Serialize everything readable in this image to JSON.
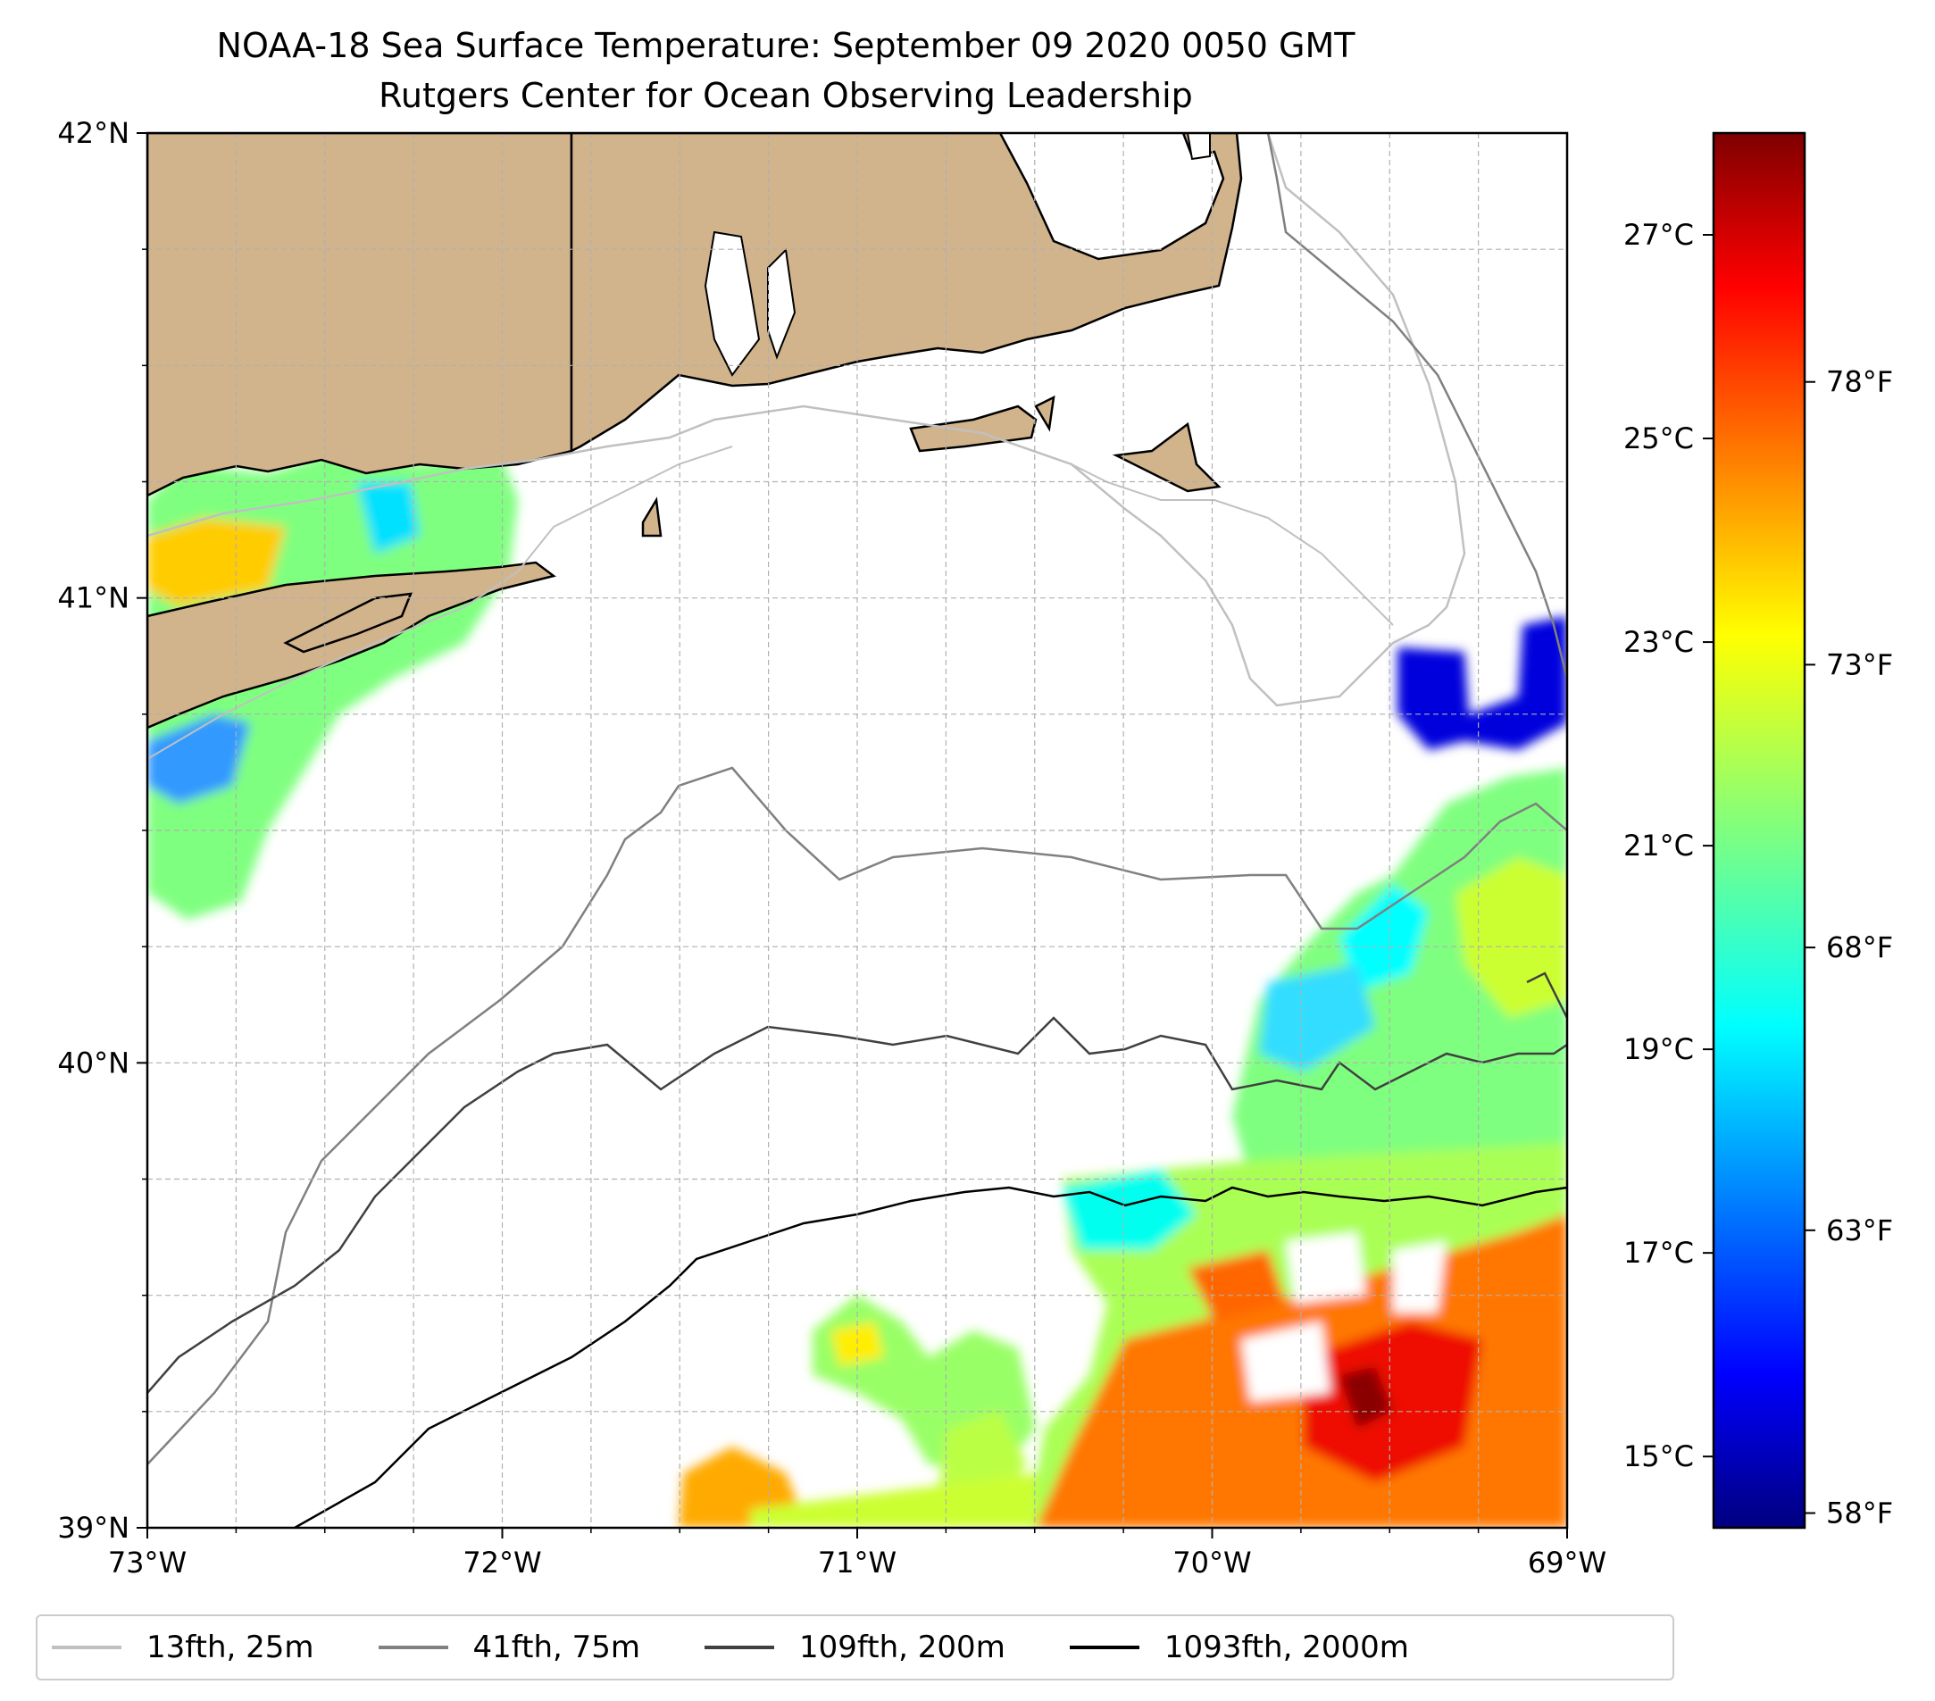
{
  "title": {
    "line1": "NOAA-18 Sea Surface Temperature: September 09 2020 0050 GMT",
    "line2": "Rutgers Center for Ocean Observing Leadership"
  },
  "axes": {
    "lat_labels": [
      "42°N",
      "41°N",
      "40°N",
      "39°N"
    ],
    "lon_labels": [
      "73°W",
      "72°W",
      "71°W",
      "70°W",
      "69°W"
    ],
    "lat_range": [
      39,
      42
    ],
    "lon_range": [
      -73,
      -69
    ],
    "grid": true
  },
  "colorbar": {
    "celsius_labels": [
      "27°C",
      "25°C",
      "23°C",
      "21°C",
      "19°C",
      "17°C",
      "15°C"
    ],
    "fahrenheit_labels": [
      "78°F",
      "73°F",
      "68°F",
      "63°F",
      "58°F"
    ],
    "colormap": "jet",
    "colors": [
      "#00007f",
      "#0000ff",
      "#007fff",
      "#00ffff",
      "#7fff7f",
      "#ffff00",
      "#ff7f00",
      "#ff0000",
      "#7f0000"
    ]
  },
  "legend": {
    "items": [
      {
        "label": "13fth, 25m",
        "color": "#c0c0c0"
      },
      {
        "label": "41fth, 75m",
        "color": "#808080"
      },
      {
        "label": "109fth, 200m",
        "color": "#404040"
      },
      {
        "label": "1093fth, 2000m",
        "color": "#000000"
      }
    ]
  },
  "colors": {
    "land": "#d2b48c",
    "coastline": "#000000",
    "grid": "#b0b0b0"
  }
}
